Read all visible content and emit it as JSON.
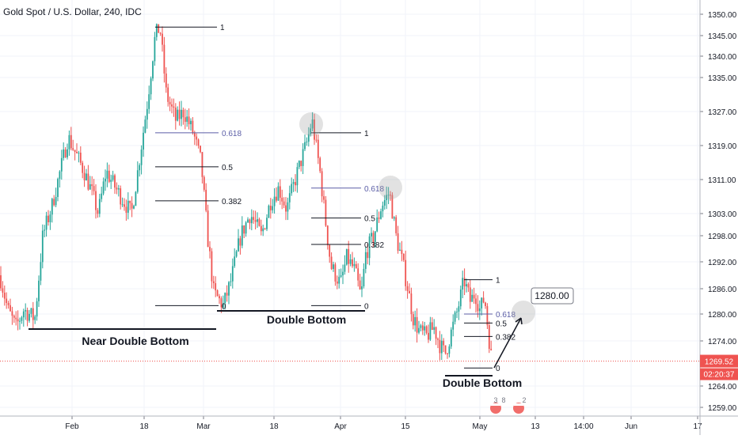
{
  "header": {
    "title": "Gold Spot / U.S. Dollar, 240, IDC"
  },
  "colors": {
    "up": "#26a69a",
    "down": "#ef5350",
    "fib_mid": "#5b5ea6",
    "line": "#131722",
    "last_price": "#ef5350",
    "grid": "#f0f3fa"
  },
  "chart_data": {
    "type": "candlestick",
    "title": "Gold Spot / U.S. Dollar, 240, IDC",
    "y_axis": {
      "ticks": [
        "1350.00",
        "1345.00",
        "1340.00",
        "1335.00",
        "1327.00",
        "1319.00",
        "1311.00",
        "1303.00",
        "1298.00",
        "1292.00",
        "1286.00",
        "1280.00",
        "1274.00",
        "1264.00",
        "1259.00"
      ],
      "current_price": "1269.52",
      "countdown": "02:20:37"
    },
    "x_axis": {
      "ticks": [
        "Feb",
        "18",
        "Mar",
        "18",
        "Apr",
        "15",
        "May",
        "13",
        "14:00",
        "Jun",
        "17"
      ]
    },
    "candle_path": [
      [
        0,
        1289
      ],
      [
        10,
        1281
      ],
      [
        20,
        1277
      ],
      [
        30,
        1281
      ],
      [
        44,
        1279
      ],
      [
        54,
        1298
      ],
      [
        66,
        1305
      ],
      [
        76,
        1313
      ],
      [
        86,
        1321
      ],
      [
        96,
        1317
      ],
      [
        106,
        1313
      ],
      [
        116,
        1308
      ],
      [
        124,
        1303
      ],
      [
        134,
        1313
      ],
      [
        146,
        1309
      ],
      [
        156,
        1306
      ],
      [
        166,
        1303
      ],
      [
        174,
        1313
      ],
      [
        186,
        1329
      ],
      [
        196,
        1345
      ],
      [
        202,
        1347
      ],
      [
        210,
        1331
      ],
      [
        222,
        1325
      ],
      [
        232,
        1327
      ],
      [
        244,
        1322
      ],
      [
        254,
        1315
      ],
      [
        262,
        1298
      ],
      [
        270,
        1285
      ],
      [
        282,
        1282
      ],
      [
        292,
        1288
      ],
      [
        304,
        1298
      ],
      [
        316,
        1303
      ],
      [
        330,
        1298
      ],
      [
        342,
        1306
      ],
      [
        352,
        1309
      ],
      [
        362,
        1304
      ],
      [
        376,
        1313
      ],
      [
        388,
        1320
      ],
      [
        394,
        1325
      ],
      [
        404,
        1313
      ],
      [
        410,
        1303
      ],
      [
        418,
        1291
      ],
      [
        430,
        1287
      ],
      [
        438,
        1293
      ],
      [
        448,
        1290
      ],
      [
        456,
        1284
      ],
      [
        462,
        1294
      ],
      [
        472,
        1298
      ],
      [
        482,
        1305
      ],
      [
        492,
        1308
      ],
      [
        500,
        1298
      ],
      [
        508,
        1292
      ],
      [
        514,
        1287
      ],
      [
        522,
        1279
      ],
      [
        530,
        1276
      ],
      [
        538,
        1275
      ],
      [
        548,
        1277
      ],
      [
        556,
        1273
      ],
      [
        562,
        1271
      ],
      [
        570,
        1276
      ],
      [
        578,
        1281
      ],
      [
        586,
        1288
      ],
      [
        594,
        1283
      ],
      [
        600,
        1285
      ],
      [
        606,
        1281
      ],
      [
        612,
        1284
      ],
      [
        616,
        1277
      ],
      [
        622,
        1268
      ]
    ],
    "fib_levels": [
      {
        "name": "1",
        "y": 1347,
        "x1": 196,
        "x2": 274
      },
      {
        "name": "0.618",
        "y": 1322,
        "x1": 196,
        "x2": 276
      },
      {
        "name": "0.5",
        "y": 1314,
        "x1": 196,
        "x2": 276
      },
      {
        "name": "0.382",
        "y": 1306,
        "x1": 196,
        "x2": 276
      },
      {
        "name": "0",
        "y": 1282,
        "x1": 196,
        "x2": 276
      },
      {
        "name": "1",
        "y": 1322,
        "x1": 393,
        "x2": 456
      },
      {
        "name": "0.618",
        "y": 1309,
        "x1": 393,
        "x2": 456
      },
      {
        "name": "0.5",
        "y": 1302,
        "x1": 393,
        "x2": 456
      },
      {
        "name": "0.382",
        "y": 1296,
        "x1": 393,
        "x2": 456
      },
      {
        "name": "0",
        "y": 1282,
        "x1": 393,
        "x2": 456
      },
      {
        "name": "1",
        "y": 1288,
        "x1": 586,
        "x2": 622
      },
      {
        "name": "0.618",
        "y": 1280,
        "x1": 586,
        "x2": 622
      },
      {
        "name": "0.5",
        "y": 1278,
        "x1": 586,
        "x2": 622
      },
      {
        "name": "0.382",
        "y": 1275,
        "x1": 586,
        "x2": 622
      },
      {
        "name": "0",
        "y": 1268,
        "x1": 586,
        "x2": 622
      }
    ],
    "annotations": {
      "near_double_bottom": "Near Double Bottom",
      "double_bottom_1": "Double Bottom",
      "double_bottom_2": "Double Bottom",
      "target_price": "1280.00",
      "event_a": "3",
      "event_b": "8",
      "event_c": "2"
    }
  }
}
